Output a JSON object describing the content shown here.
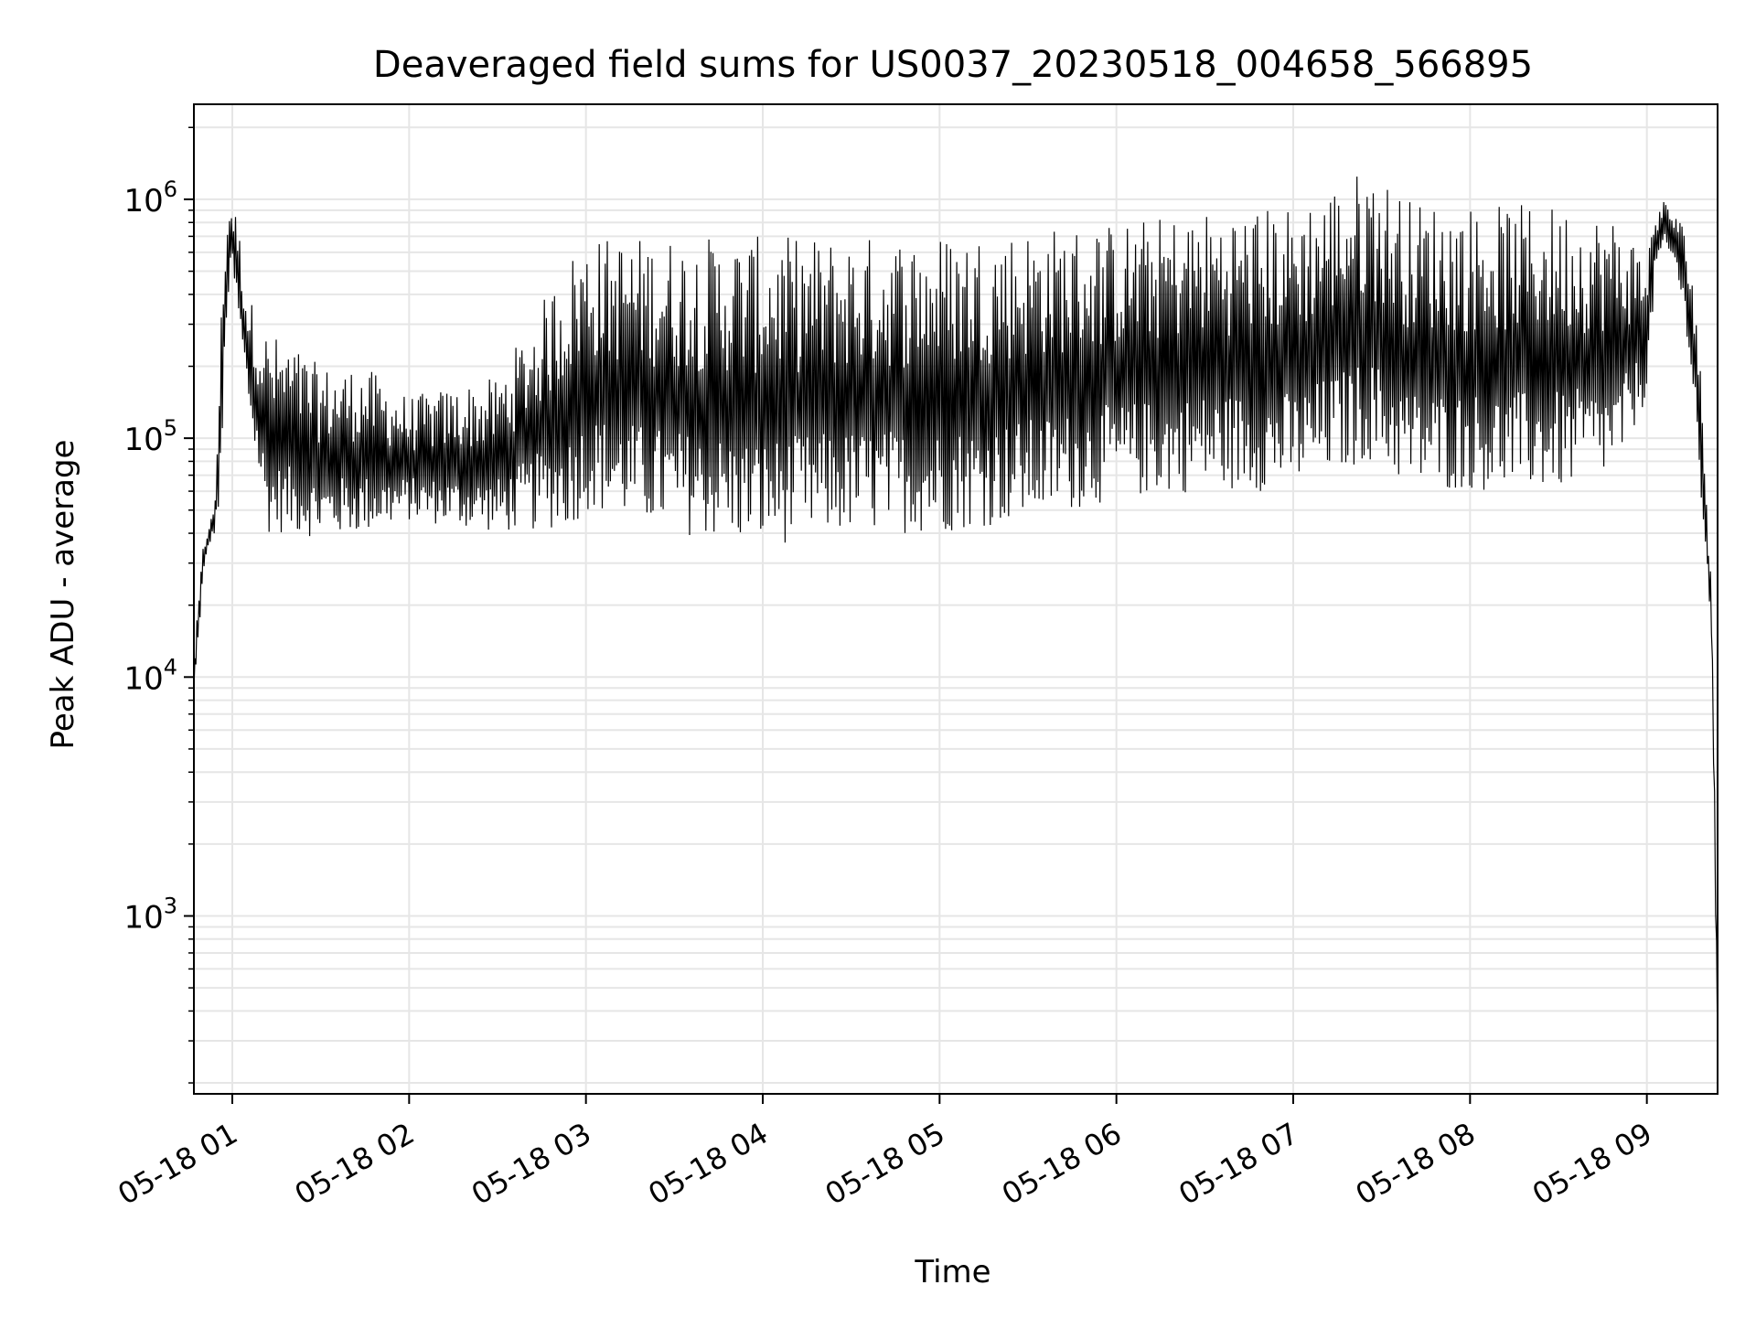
{
  "chart_data": {
    "type": "line",
    "title": "Deaveraged field sums for US0037_20230518_004658_566895",
    "xlabel": "Time",
    "ylabel": "Peak ADU - average",
    "y_scale": "log",
    "ylim": [
      180,
      2500000
    ],
    "xlim": [
      "2023-05-18 00:46:58",
      "2023-05-18 09:24:00"
    ],
    "x_ticks": [
      "2023-05-18 01:00",
      "2023-05-18 02:00",
      "2023-05-18 03:00",
      "2023-05-18 04:00",
      "2023-05-18 05:00",
      "2023-05-18 06:00",
      "2023-05-18 07:00",
      "2023-05-18 08:00",
      "2023-05-18 09:00"
    ],
    "x_tick_labels": [
      "05-18 01",
      "05-18 02",
      "05-18 03",
      "05-18 04",
      "05-18 05",
      "05-18 06",
      "05-18 07",
      "05-18 08",
      "05-18 09"
    ],
    "y_ticks": [
      1000,
      10000,
      100000,
      1000000
    ],
    "y_tick_base": "10",
    "y_tick_exponents": [
      "3",
      "4",
      "5",
      "6"
    ],
    "grid": "major and minor",
    "line_color": "#000000",
    "grid_color": "#e6e6e6",
    "series": [
      {
        "x": [
          "2023-05-18 00:46:58",
          "2023-05-18 00:50:00",
          "2023-05-18 00:52:00",
          "2023-05-18 00:54:00",
          "2023-05-18 00:56:00",
          "2023-05-18 00:58:00",
          "2023-05-18 01:00:00",
          "2023-05-18 01:02:00",
          "2023-05-18 01:05:00",
          "2023-05-18 01:08:00",
          "2023-05-18 01:12:00",
          "2023-05-18 01:20:00",
          "2023-05-18 01:30:00",
          "2023-05-18 01:45:00",
          "2023-05-18 02:00:00",
          "2023-05-18 02:30:00",
          "2023-05-18 02:55:00",
          "2023-05-18 03:00:00",
          "2023-05-18 03:30:00",
          "2023-05-18 04:00:00",
          "2023-05-18 04:30:00",
          "2023-05-18 05:00:00",
          "2023-05-18 05:30:00",
          "2023-05-18 06:00:00",
          "2023-05-18 06:30:00",
          "2023-05-18 07:00:00",
          "2023-05-18 07:26:00",
          "2023-05-18 07:40:00",
          "2023-05-18 08:00:00",
          "2023-05-18 08:30:00",
          "2023-05-18 08:50:00",
          "2023-05-18 09:00:00",
          "2023-05-18 09:03:00",
          "2023-05-18 09:06:00",
          "2023-05-18 09:10:00",
          "2023-05-18 09:14:00",
          "2023-05-18 09:17:00",
          "2023-05-18 09:20:00",
          "2023-05-18 09:22:00",
          "2023-05-18 09:24:00"
        ],
        "y_low": [
          8000,
          25000,
          35000,
          40000,
          50000,
          300000,
          500000,
          300000,
          150000,
          80000,
          40000,
          40000,
          38000,
          40000,
          45000,
          40000,
          42000,
          50000,
          40000,
          35000,
          40000,
          40000,
          45000,
          55000,
          60000,
          60000,
          80000,
          60000,
          60000,
          60000,
          70000,
          150000,
          500000,
          600000,
          500000,
          250000,
          100000,
          25000,
          12000,
          250
        ],
        "y_high": [
          12000,
          35000,
          45000,
          50000,
          300000,
          1000000,
          1000000,
          800000,
          400000,
          350000,
          280000,
          250000,
          200000,
          200000,
          150000,
          180000,
          600000,
          700000,
          700000,
          700000,
          700000,
          720000,
          760000,
          800000,
          900000,
          950000,
          1400000,
          1000000,
          950000,
          950000,
          850000,
          600000,
          950000,
          1000000,
          900000,
          700000,
          350000,
          80000,
          30000,
          500
        ]
      }
    ]
  }
}
